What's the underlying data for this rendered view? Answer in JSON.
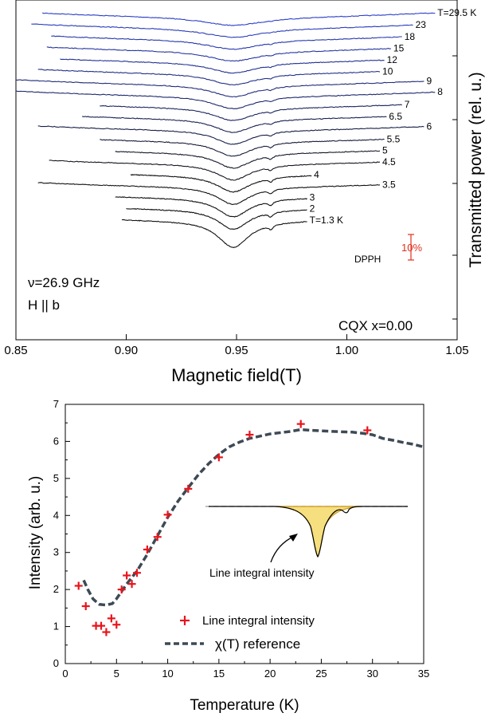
{
  "chart_data": [
    {
      "type": "line",
      "xlabel": "Magnetic field(T)",
      "ylabel": "Transmitted power (rel. u.)",
      "xlim": [
        0.85,
        1.05
      ],
      "x_ticks": [
        "0.85",
        "0.90",
        "0.95",
        "1.00",
        "1.05"
      ],
      "series_labels": [
        "T=29.5 K",
        "23",
        "18",
        "15",
        "12",
        "10",
        "9",
        "8",
        "7",
        "6.5",
        "6",
        "5.5",
        "5",
        "4.5",
        "4",
        "3.5",
        "3",
        "2",
        "T=1.3 K"
      ],
      "series": [
        {
          "temp": 29.5,
          "x_range": [
            0.862,
            1.04
          ],
          "main_depth": 0.75,
          "main_width": 0.017,
          "dpph_depth": 0.1
        },
        {
          "temp": 23,
          "x_range": [
            0.857,
            1.03
          ],
          "main_depth": 0.8,
          "main_width": 0.016,
          "dpph_depth": 0.18
        },
        {
          "temp": 18,
          "x_range": [
            0.866,
            1.025
          ],
          "main_depth": 0.85,
          "main_width": 0.015,
          "dpph_depth": 0.25
        },
        {
          "temp": 15,
          "x_range": [
            0.864,
            1.02
          ],
          "main_depth": 0.9,
          "main_width": 0.014,
          "dpph_depth": 0.3
        },
        {
          "temp": 12,
          "x_range": [
            0.87,
            1.017
          ],
          "main_depth": 0.95,
          "main_width": 0.013,
          "dpph_depth": 0.35
        },
        {
          "temp": 10,
          "x_range": [
            0.86,
            1.015
          ],
          "main_depth": 1.0,
          "main_width": 0.0125,
          "dpph_depth": 0.4
        },
        {
          "temp": 9,
          "x_range": [
            0.85,
            1.035
          ],
          "main_depth": 1.05,
          "main_width": 0.012,
          "dpph_depth": 0.45
        },
        {
          "temp": 8,
          "x_range": [
            0.85,
            1.04
          ],
          "main_depth": 1.1,
          "main_width": 0.0115,
          "dpph_depth": 0.5
        },
        {
          "temp": 7,
          "x_range": [
            0.888,
            1.025
          ],
          "main_depth": 1.15,
          "main_width": 0.011,
          "dpph_depth": 0.55
        },
        {
          "temp": 6.5,
          "x_range": [
            0.88,
            1.018
          ],
          "main_depth": 1.2,
          "main_width": 0.0105,
          "dpph_depth": 0.6
        },
        {
          "temp": 6,
          "x_range": [
            0.86,
            1.035
          ],
          "main_depth": 1.25,
          "main_width": 0.01,
          "dpph_depth": 0.65
        },
        {
          "temp": 5.5,
          "x_range": [
            0.888,
            1.017
          ],
          "main_depth": 1.3,
          "main_width": 0.0098,
          "dpph_depth": 0.7
        },
        {
          "temp": 5,
          "x_range": [
            0.895,
            1.015
          ],
          "main_depth": 1.35,
          "main_width": 0.0096,
          "dpph_depth": 0.75
        },
        {
          "temp": 4.5,
          "x_range": [
            0.865,
            1.015
          ],
          "main_depth": 1.4,
          "main_width": 0.0094,
          "dpph_depth": 0.8
        },
        {
          "temp": 4,
          "x_range": [
            0.902,
            0.984
          ],
          "main_depth": 1.45,
          "main_width": 0.0092,
          "dpph_depth": 0.85
        },
        {
          "temp": 3.5,
          "x_range": [
            0.86,
            1.015
          ],
          "main_depth": 1.55,
          "main_width": 0.009,
          "dpph_depth": 0.9
        },
        {
          "temp": 3,
          "x_range": [
            0.895,
            0.982
          ],
          "main_depth": 1.65,
          "main_width": 0.0088,
          "dpph_depth": 0.95
        },
        {
          "temp": 2,
          "x_range": [
            0.9,
            0.982
          ],
          "main_depth": 1.75,
          "main_width": 0.0086,
          "dpph_depth": 1.0
        },
        {
          "temp": 1.3,
          "x_range": [
            0.898,
            0.982
          ],
          "main_depth": 2.35,
          "main_width": 0.0085,
          "dpph_depth": 1.0
        }
      ],
      "annotations": {
        "frequency": "ν=26.9 GHz",
        "orientation": "H || b",
        "sample": "CQX x=0.00",
        "dpph": "DPPH",
        "scale_bar": "10%"
      },
      "colors": {
        "high_temp": "#2b3fc8",
        "low_temp": "#111111",
        "scale": "#e0301e"
      }
    },
    {
      "type": "scatter",
      "xlabel": "Temperature (K)",
      "ylabel": "Intensity (arb. u.)",
      "xlim": [
        0,
        35
      ],
      "ylim": [
        0,
        7
      ],
      "x_ticks": [
        "0",
        "5",
        "10",
        "15",
        "20",
        "25",
        "30",
        "35"
      ],
      "y_ticks": [
        "0",
        "1",
        "2",
        "3",
        "4",
        "5",
        "6",
        "7"
      ],
      "series": [
        {
          "name": "Line integral intensity",
          "marker": "+",
          "color": "#e8141c",
          "points": [
            [
              1.3,
              2.1
            ],
            [
              2.0,
              1.55
            ],
            [
              3.0,
              1.02
            ],
            [
              3.5,
              1.02
            ],
            [
              4.0,
              0.85
            ],
            [
              4.5,
              1.22
            ],
            [
              5.0,
              1.05
            ],
            [
              5.5,
              2.0
            ],
            [
              6.0,
              2.38
            ],
            [
              6.5,
              2.15
            ],
            [
              7.0,
              2.45
            ],
            [
              8.0,
              3.08
            ],
            [
              9.0,
              3.42
            ],
            [
              10.0,
              4.02
            ],
            [
              12.0,
              4.72
            ],
            [
              15.0,
              5.57
            ],
            [
              18.0,
              6.18
            ],
            [
              23.0,
              6.47
            ],
            [
              29.5,
              6.3
            ]
          ]
        },
        {
          "name": "χ(T) reference",
          "style": "dashed",
          "color": "#3d4a55",
          "points": [
            [
              1.8,
              2.25
            ],
            [
              2.2,
              2.0
            ],
            [
              2.7,
              1.75
            ],
            [
              3.3,
              1.6
            ],
            [
              4.0,
              1.58
            ],
            [
              4.6,
              1.62
            ],
            [
              5.0,
              1.75
            ],
            [
              5.5,
              1.95
            ],
            [
              6.0,
              2.15
            ],
            [
              7.0,
              2.5
            ],
            [
              8.0,
              2.95
            ],
            [
              9.0,
              3.45
            ],
            [
              10.0,
              3.95
            ],
            [
              11.0,
              4.38
            ],
            [
              12.0,
              4.75
            ],
            [
              13.0,
              5.1
            ],
            [
              14.0,
              5.4
            ],
            [
              15.0,
              5.65
            ],
            [
              16.0,
              5.85
            ],
            [
              17.0,
              5.98
            ],
            [
              18.0,
              6.08
            ],
            [
              20.0,
              6.2
            ],
            [
              22.0,
              6.27
            ],
            [
              23.0,
              6.32
            ],
            [
              24.0,
              6.3
            ],
            [
              26.0,
              6.27
            ],
            [
              28.0,
              6.25
            ],
            [
              29.0,
              6.22
            ],
            [
              30.0,
              6.18
            ],
            [
              31.0,
              6.08
            ],
            [
              32.0,
              6.03
            ],
            [
              33.0,
              5.97
            ],
            [
              34.0,
              5.92
            ],
            [
              35.0,
              5.85
            ]
          ]
        }
      ],
      "inset_label": "Line integral intensity",
      "legend": {
        "position": "bottom-center"
      }
    }
  ]
}
